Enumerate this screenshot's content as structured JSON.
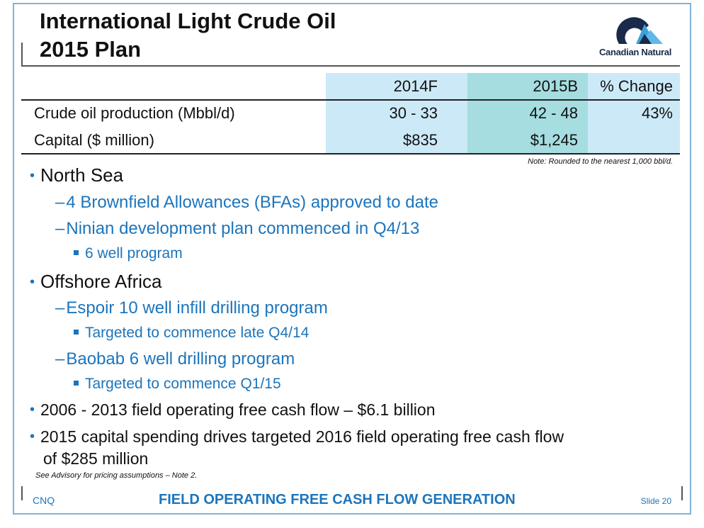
{
  "header": {
    "title_line1": "International Light Crude Oil",
    "title_line2": "2015 Plan",
    "logo_text": "Canadian Natural"
  },
  "table": {
    "columns": [
      "2014F",
      "2015B",
      "% Change"
    ],
    "rows": [
      {
        "label": "Crude oil production (Mbbl/d)",
        "v2014": "30 - 33",
        "v2015": "42 - 48",
        "change": "43%"
      },
      {
        "label": "Capital ($ million)",
        "v2014": "$835",
        "v2015": "$1,245",
        "change": ""
      }
    ],
    "note": "Note: Rounded to the nearest 1,000 bbl/d."
  },
  "bullets": {
    "north_sea": "North Sea",
    "ns_1": "4 Brownfield Allowances (BFAs) approved to date",
    "ns_2": "Ninian development plan commenced in Q4/13",
    "ns_2a": "6 well program",
    "offshore_africa": "Offshore Africa",
    "oa_1": "Espoir 10 well infill drilling program",
    "oa_1a": "Targeted to commence late Q4/14",
    "oa_2": "Baobab 6 well drilling program",
    "oa_2a": "Targeted to commence Q1/15",
    "fcf_hist": "2006 - 2013 field operating free cash flow – $6.1 billion",
    "fcf_plan_l1": "2015 capital spending drives targeted 2016 field operating free cash flow",
    "fcf_plan_l2": "of $285 million"
  },
  "advisory": "See Advisory for pricing assumptions – Note 2.",
  "footer": {
    "left": "CNQ",
    "center": "FIELD OPERATING FREE CASH FLOW GENERATION",
    "right": "Slide 20"
  },
  "colors": {
    "accent_blue": "#1c75bc",
    "col_2014_bg": "#cce9f7",
    "col_2015_bg": "#a5dde0"
  }
}
